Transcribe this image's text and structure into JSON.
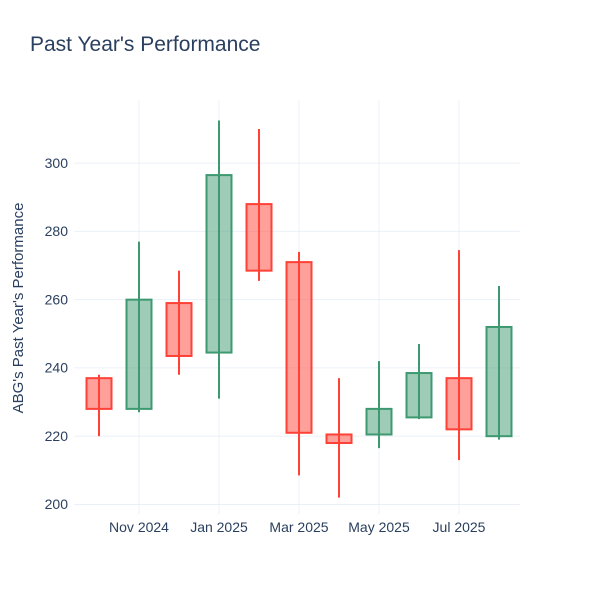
{
  "title": "Past Year's Performance",
  "colors": {
    "font": "#2a3f5f",
    "grid": "#ebf0f8",
    "background": "#ffffff",
    "increasing_line": "#3d9970",
    "increasing_fill": "rgba(61,153,112,0.5)",
    "decreasing_line": "#ff4136",
    "decreasing_fill": "rgba(255,65,54,0.5)"
  },
  "chart_data": {
    "type": "candlestick",
    "title": "Past Year's Performance",
    "xlabel": "",
    "ylabel": "ABG's Past Year's Performance",
    "grid": true,
    "legend": "none",
    "ylim": [
      197.2,
      318.5
    ],
    "y_ticks": [
      200,
      220,
      240,
      260,
      280,
      300
    ],
    "x_tick_labels": [
      "Nov 2024",
      "Jan 2025",
      "Mar 2025",
      "May 2025",
      "Jul 2025"
    ],
    "x_tick_positions": [
      1,
      3,
      5,
      7,
      9
    ],
    "categories": [
      "Oct 2024",
      "Nov 2024",
      "Dec 2024",
      "Jan 2025",
      "Feb 2025",
      "Mar 2025",
      "Apr 2025",
      "May 2025",
      "Jun 2025",
      "Jul 2025",
      "Aug 2025"
    ],
    "series": [
      {
        "month": "Oct 2024",
        "open": 237.0,
        "high": 238.0,
        "low": 220.0,
        "close": 228.0,
        "direction": "decreasing"
      },
      {
        "month": "Nov 2024",
        "open": 228.0,
        "high": 277.0,
        "low": 227.0,
        "close": 260.0,
        "direction": "increasing"
      },
      {
        "month": "Dec 2024",
        "open": 259.0,
        "high": 268.5,
        "low": 238.0,
        "close": 243.5,
        "direction": "decreasing"
      },
      {
        "month": "Jan 2025",
        "open": 244.5,
        "high": 312.5,
        "low": 231.0,
        "close": 296.5,
        "direction": "increasing"
      },
      {
        "month": "Feb 2025",
        "open": 288.0,
        "high": 310.0,
        "low": 265.5,
        "close": 268.5,
        "direction": "decreasing"
      },
      {
        "month": "Mar 2025",
        "open": 271.0,
        "high": 274.0,
        "low": 208.5,
        "close": 221.0,
        "direction": "decreasing"
      },
      {
        "month": "Apr 2025",
        "open": 220.5,
        "high": 237.0,
        "low": 202.0,
        "close": 218.0,
        "direction": "decreasing"
      },
      {
        "month": "May 2025",
        "open": 220.5,
        "high": 242.0,
        "low": 216.5,
        "close": 228.0,
        "direction": "increasing"
      },
      {
        "month": "Jun 2025",
        "open": 225.5,
        "high": 247.0,
        "low": 225.0,
        "close": 238.5,
        "direction": "increasing"
      },
      {
        "month": "Jul 2025",
        "open": 237.0,
        "high": 274.5,
        "low": 213.0,
        "close": 222.0,
        "direction": "decreasing"
      },
      {
        "month": "Aug 2025",
        "open": 220.0,
        "high": 264.0,
        "low": 219.0,
        "close": 252.0,
        "direction": "increasing"
      }
    ]
  }
}
